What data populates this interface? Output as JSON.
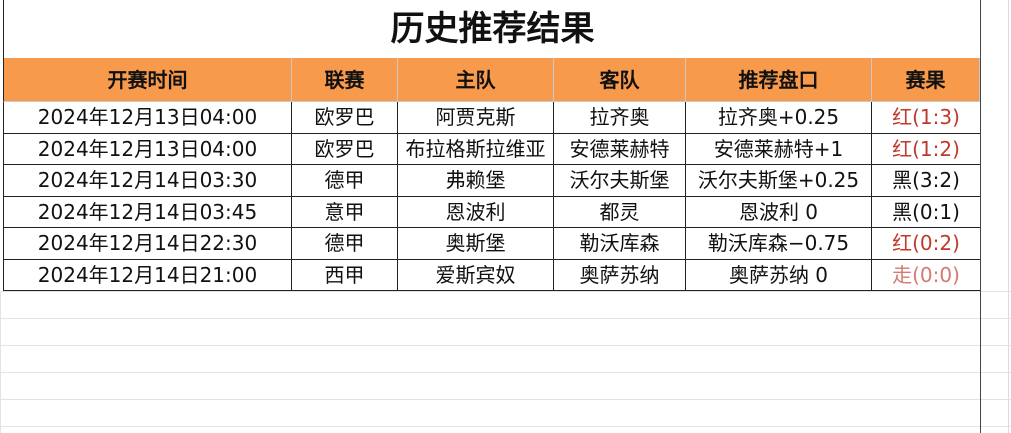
{
  "header": {
    "title": "历史推荐结果"
  },
  "table": {
    "columns": [
      "开赛时间",
      "联赛",
      "主队",
      "客队",
      "推荐盘口",
      "赛果"
    ],
    "rows": [
      [
        "2024年12月13日04:00",
        "欧罗巴",
        "阿贾克斯",
        "拉齐奥",
        "拉齐奥+0.25",
        "红(1:3)"
      ],
      [
        "2024年12月13日04:00",
        "欧罗巴",
        "布拉格斯拉维亚",
        "安德莱赫特",
        "安德莱赫特+1",
        "红(1:2)"
      ],
      [
        "2024年12月14日03:30",
        "德甲",
        "弗赖堡",
        "沃尔夫斯堡",
        "沃尔夫斯堡+0.25",
        "黑(3:2)"
      ],
      [
        "2024年12月14日03:45",
        "意甲",
        "恩波利",
        "都灵",
        "恩波利 0",
        "黑(0:1)"
      ],
      [
        "2024年12月14日22:30",
        "德甲",
        "奥斯堡",
        "勒沃库森",
        "勒沃库森−0.75",
        "红(0:2)"
      ],
      [
        "2024年12月14日21:00",
        "西甲",
        "爱斯宾奴",
        "奥萨苏纳",
        "奥萨苏纳 0",
        "走(0:0)"
      ]
    ]
  }
}
